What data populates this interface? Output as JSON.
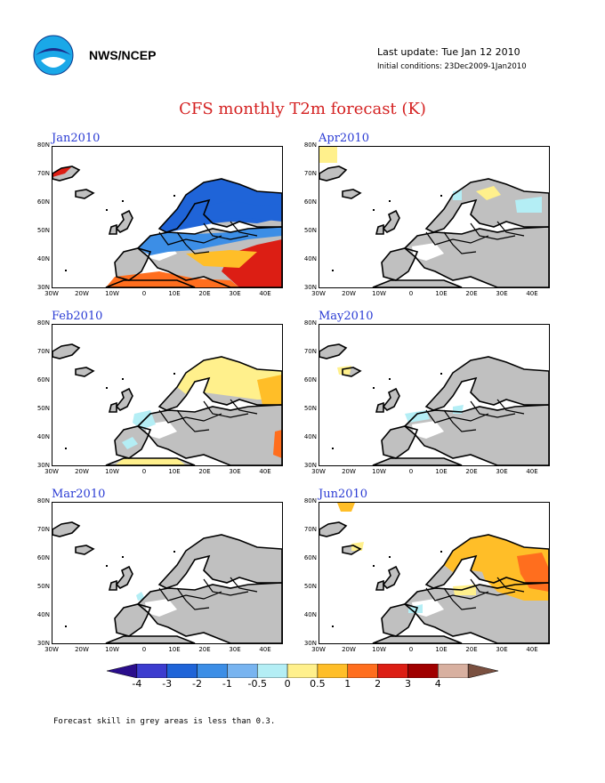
{
  "header": {
    "agency": "NWS/NCEP",
    "last_update": "Last update: Tue Jan 12 2010",
    "initial_conditions": "Initial conditions: 23Dec2009-1Jan2010"
  },
  "title": "CFS monthly T2m forecast (K)",
  "axes": {
    "lat_labels": [
      "80N",
      "70N",
      "60N",
      "50N",
      "40N",
      "30N"
    ],
    "lon_labels": [
      "30W",
      "20W",
      "10W",
      "0",
      "10E",
      "20E",
      "30E",
      "40E"
    ]
  },
  "panels": [
    {
      "id": "jan",
      "title": "Jan2010",
      "dominant_anomaly": "-1 to -2 over north/central Europe, +1 to +3 over Mediterranean and southeast"
    },
    {
      "id": "feb",
      "title": "Feb2010",
      "dominant_anomaly": "+0.5 to +1 over Scandinavia and northeast, -0.5 over France"
    },
    {
      "id": "mar",
      "title": "Mar2010",
      "dominant_anomaly": "mostly low skill (grey)"
    },
    {
      "id": "apr",
      "title": "Apr2010",
      "dominant_anomaly": "small +0.5 over Scandinavia, -0.5 in Baltic area"
    },
    {
      "id": "may",
      "title": "May2010",
      "dominant_anomaly": "small -0.5 over central Europe"
    },
    {
      "id": "jun",
      "title": "Jun2010",
      "dominant_anomaly": "+0.5 to +2 over Scandinavia and Russia"
    }
  ],
  "colorbar": {
    "labels": [
      "-4",
      "-3",
      "-2",
      "-1",
      "-0.5",
      "0",
      "0.5",
      "1",
      "2",
      "3",
      "4"
    ],
    "colors": [
      "#2a0d8c",
      "#3c3ccf",
      "#1f64d8",
      "#3c8ee6",
      "#78b4f0",
      "#b4eef5",
      "#fff08c",
      "#ffbe28",
      "#ff6e1e",
      "#dc1e14",
      "#a00000",
      "#d8b0a0",
      "#7a5040"
    ]
  },
  "colors": {
    "grey_low_skill": "#c0c0c0",
    "title_red": "#d42020",
    "panel_title_blue": "#2a3bd4"
  },
  "footnote": "Forecast skill in grey areas is less than 0.3."
}
